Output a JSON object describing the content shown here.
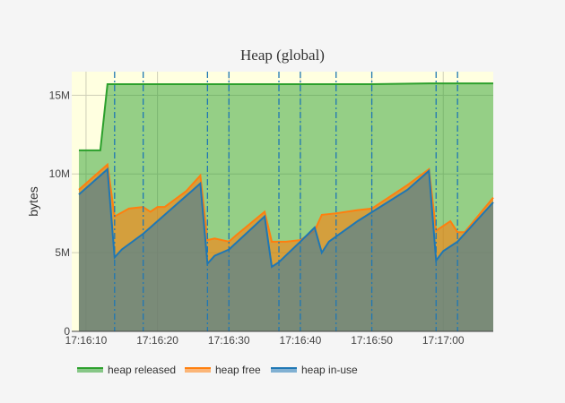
{
  "chart_data": {
    "type": "area",
    "title": "Heap (global)",
    "xlabel": "",
    "ylabel": "bytes",
    "x_unit": "time",
    "xlim": [
      "17:16:08",
      "17:17:07"
    ],
    "ylim": [
      0,
      16500000
    ],
    "y_ticks": [
      0,
      5000000,
      10000000,
      15000000
    ],
    "y_tick_labels": [
      "0",
      "5M",
      "10M",
      "15M"
    ],
    "x_ticks": [
      "17:16:10",
      "17:16:20",
      "17:16:30",
      "17:16:40",
      "17:16:50",
      "17:17:00"
    ],
    "gc_events": [
      "17:16:14",
      "17:16:18",
      "17:16:27",
      "17:16:30",
      "17:16:37",
      "17:16:40",
      "17:16:45",
      "17:16:50",
      "17:16:59",
      "17:17:02"
    ],
    "legend_placement": "bottom",
    "grid": true,
    "colors": {
      "plot_bg": "#ffffe0",
      "released": "#2ca02c",
      "free": "#ff7f0e",
      "inuse": "#1f77b4",
      "gc_line": "#1f77b4"
    },
    "series": [
      {
        "name": "heap released",
        "x": [
          "17:16:09",
          "17:16:12",
          "17:16:13",
          "17:16:20",
          "17:16:30",
          "17:16:40",
          "17:16:50",
          "17:16:58",
          "17:17:07"
        ],
        "values": [
          11500000,
          11500000,
          15700000,
          15700000,
          15700000,
          15700000,
          15700000,
          15750000,
          15750000
        ]
      },
      {
        "name": "heap free",
        "x": [
          "17:16:09",
          "17:16:11",
          "17:16:13",
          "17:16:14",
          "17:16:16",
          "17:16:18",
          "17:16:19",
          "17:16:20",
          "17:16:21",
          "17:16:24",
          "17:16:26",
          "17:16:27",
          "17:16:28",
          "17:16:30",
          "17:16:31",
          "17:16:35",
          "17:16:36",
          "17:16:38",
          "17:16:40",
          "17:16:42",
          "17:16:43",
          "17:16:45",
          "17:16:48",
          "17:16:50",
          "17:16:55",
          "17:16:58",
          "17:16:59",
          "17:17:01",
          "17:17:02",
          "17:17:03",
          "17:17:07"
        ],
        "values": [
          9000000,
          9800000,
          10600000,
          7300000,
          7800000,
          7900000,
          7600000,
          7900000,
          7900000,
          8900000,
          9900000,
          5800000,
          5900000,
          5700000,
          6100000,
          7600000,
          5700000,
          5700000,
          5800000,
          6400000,
          7400000,
          7500000,
          7700000,
          7800000,
          9300000,
          10300000,
          6400000,
          7000000,
          6300000,
          6300000,
          8500000
        ]
      },
      {
        "name": "heap in-use",
        "x": [
          "17:16:09",
          "17:16:13",
          "17:16:14",
          "17:16:15",
          "17:16:18",
          "17:16:22",
          "17:16:25",
          "17:16:26",
          "17:16:27",
          "17:16:28",
          "17:16:30",
          "17:16:35",
          "17:16:36",
          "17:16:37",
          "17:16:40",
          "17:16:42",
          "17:16:43",
          "17:16:44",
          "17:16:48",
          "17:16:55",
          "17:16:58",
          "17:16:59",
          "17:17:00",
          "17:17:02",
          "17:17:07"
        ],
        "values": [
          8700000,
          10300000,
          4700000,
          5200000,
          6200000,
          7800000,
          9000000,
          9400000,
          4300000,
          4800000,
          5200000,
          7300000,
          4100000,
          4400000,
          5700000,
          6600000,
          5000000,
          5700000,
          7000000,
          9000000,
          10200000,
          4500000,
          5100000,
          5700000,
          8200000
        ]
      }
    ]
  }
}
